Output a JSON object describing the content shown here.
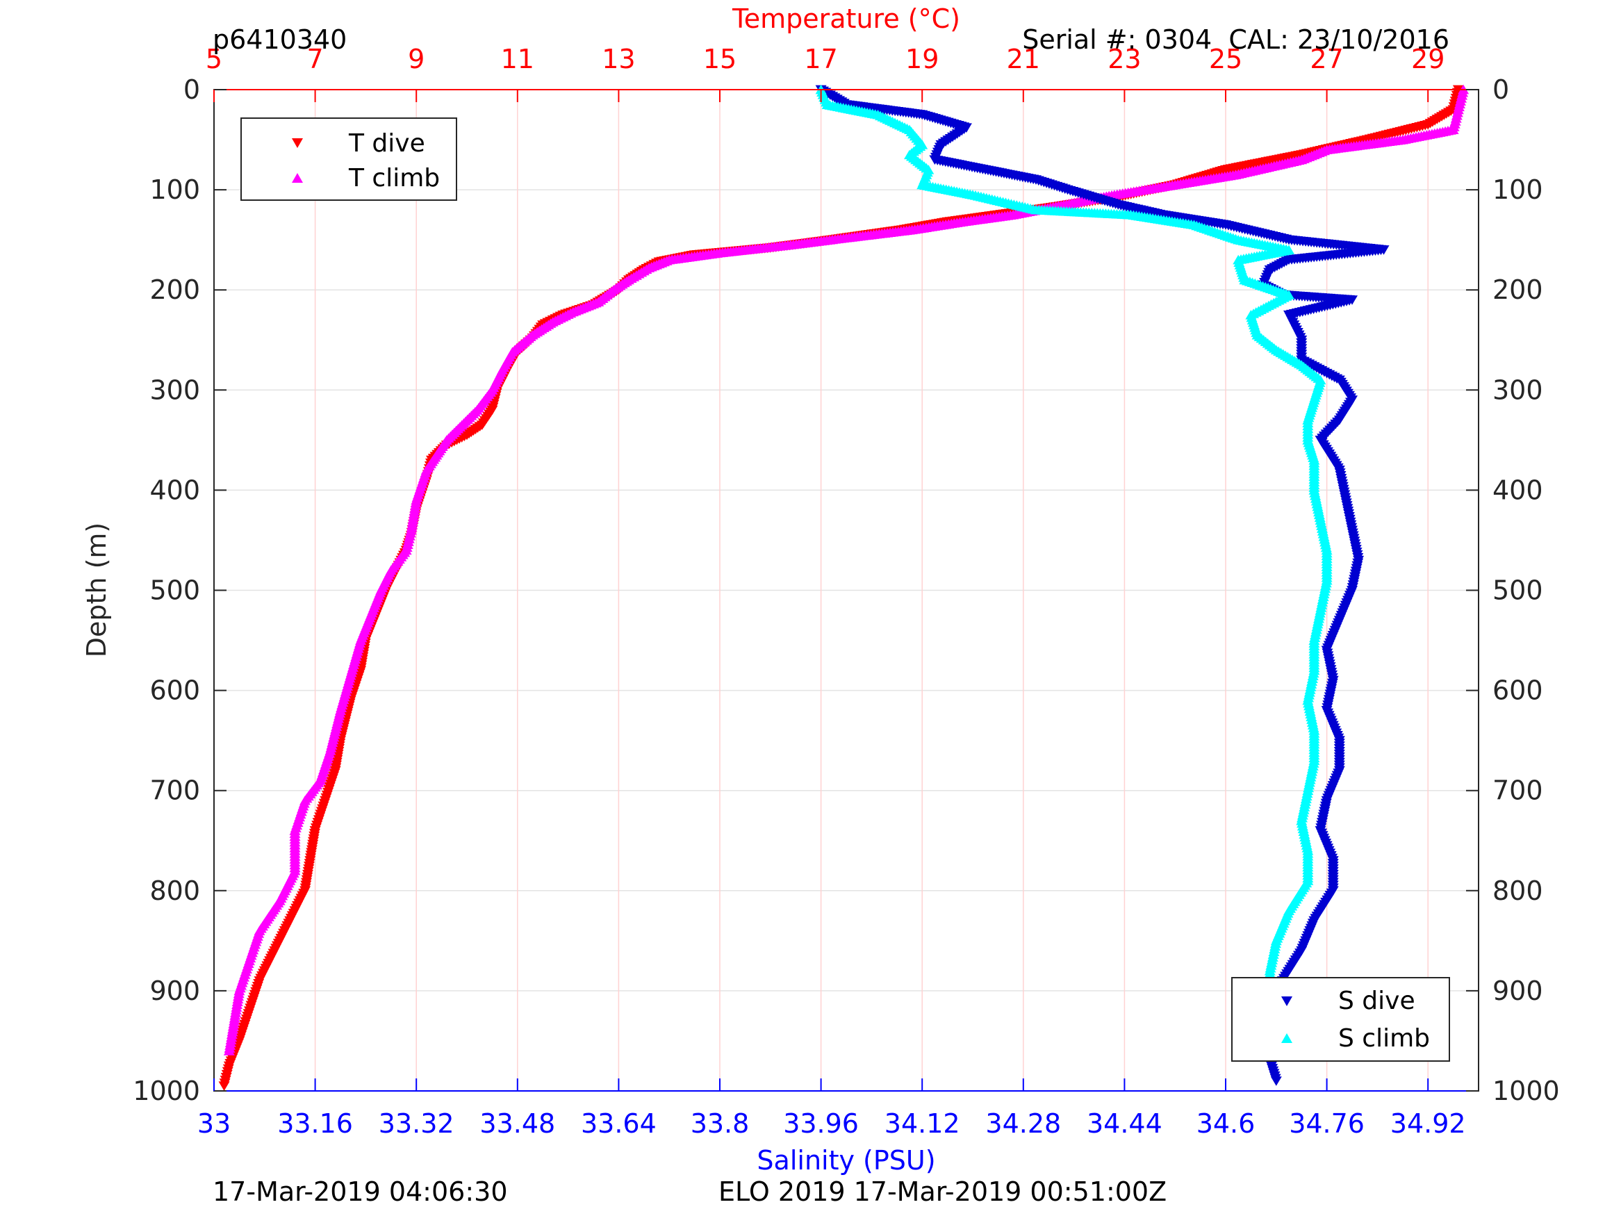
{
  "header": {
    "glider_id": "p6410340",
    "serial_cal": "Serial #: 0304  CAL: 23/10/2016"
  },
  "footer": {
    "left_timestamp": "17-Mar-2019 04:06:30",
    "mission": "ELO 2019 17-Mar-2019 00:51:00Z"
  },
  "colors": {
    "temp_axis": "#ff0000",
    "sal_axis": "#0000ff",
    "t_dive": "#ff0000",
    "t_climb": "#ff00ff",
    "s_dive": "#0000d0",
    "s_climb": "#00ffff"
  },
  "chart_data": {
    "type": "scatter",
    "title": "Temperature (°C)",
    "x_top": {
      "label": "Temperature (°C)",
      "range": [
        5,
        30
      ],
      "ticks": [
        "5",
        "7",
        "9",
        "11",
        "13",
        "15",
        "17",
        "19",
        "21",
        "23",
        "25",
        "27",
        "29"
      ]
    },
    "x_bottom": {
      "label": "Salinity (PSU)",
      "range": [
        33,
        35
      ],
      "ticks": [
        "33",
        "33.16",
        "33.32",
        "33.48",
        "33.64",
        "33.8",
        "33.96",
        "34.12",
        "34.28",
        "34.44",
        "34.6",
        "34.76",
        "34.92"
      ]
    },
    "y": {
      "label": "Depth (m)",
      "range": [
        0,
        1000
      ],
      "reversed": true,
      "ticks": [
        "0",
        "100",
        "200",
        "300",
        "400",
        "500",
        "600",
        "700",
        "800",
        "900",
        "1000"
      ]
    },
    "grid": true,
    "legend_temp": {
      "placement": "top-left",
      "entries": [
        "T dive",
        "T climb"
      ]
    },
    "legend_sal": {
      "placement": "bottom-right",
      "entries": [
        "S dive",
        "S climb"
      ]
    },
    "series": [
      {
        "name": "T dive",
        "axis": "temperature",
        "marker": "triangle-down",
        "points": [
          [
            29.6,
            0
          ],
          [
            29.5,
            20
          ],
          [
            29.0,
            35
          ],
          [
            27.8,
            50
          ],
          [
            26.5,
            65
          ],
          [
            25.0,
            80
          ],
          [
            24.0,
            95
          ],
          [
            22.8,
            108
          ],
          [
            21.5,
            118
          ],
          [
            20.5,
            125
          ],
          [
            19.5,
            132
          ],
          [
            18.6,
            140
          ],
          [
            17.2,
            150
          ],
          [
            16.0,
            158
          ],
          [
            14.5,
            165
          ],
          [
            13.8,
            172
          ],
          [
            13.5,
            180
          ],
          [
            13.2,
            190
          ],
          [
            13.0,
            200
          ],
          [
            12.5,
            215
          ],
          [
            11.9,
            225
          ],
          [
            11.5,
            235
          ],
          [
            11.3,
            248
          ],
          [
            11.0,
            262
          ],
          [
            10.8,
            280
          ],
          [
            10.6,
            300
          ],
          [
            10.5,
            320
          ],
          [
            10.3,
            335
          ],
          [
            10.0,
            345
          ],
          [
            9.6,
            355
          ],
          [
            9.3,
            370
          ],
          [
            9.2,
            390
          ],
          [
            9.0,
            420
          ],
          [
            8.9,
            445
          ],
          [
            8.8,
            460
          ],
          [
            8.6,
            480
          ],
          [
            8.4,
            500
          ],
          [
            8.2,
            525
          ],
          [
            8.0,
            550
          ],
          [
            7.9,
            580
          ],
          [
            7.7,
            610
          ],
          [
            7.5,
            650
          ],
          [
            7.4,
            680
          ],
          [
            7.2,
            710
          ],
          [
            7.0,
            740
          ],
          [
            6.9,
            770
          ],
          [
            6.8,
            800
          ],
          [
            6.5,
            830
          ],
          [
            6.2,
            860
          ],
          [
            5.9,
            890
          ],
          [
            5.7,
            920
          ],
          [
            5.5,
            950
          ],
          [
            5.3,
            975
          ],
          [
            5.2,
            995
          ]
        ]
      },
      {
        "name": "T climb",
        "axis": "temperature",
        "marker": "triangle-up",
        "points": [
          [
            29.7,
            0
          ],
          [
            29.6,
            20
          ],
          [
            29.5,
            40
          ],
          [
            28.5,
            50
          ],
          [
            27.0,
            60
          ],
          [
            26.5,
            70
          ],
          [
            25.2,
            85
          ],
          [
            24.0,
            95
          ],
          [
            22.8,
            105
          ],
          [
            21.8,
            115
          ],
          [
            20.8,
            125
          ],
          [
            19.8,
            132
          ],
          [
            18.8,
            140
          ],
          [
            17.5,
            148
          ],
          [
            16.4,
            155
          ],
          [
            15.0,
            163
          ],
          [
            14.0,
            170
          ],
          [
            13.6,
            178
          ],
          [
            13.2,
            190
          ],
          [
            12.9,
            200
          ],
          [
            12.6,
            212
          ],
          [
            12.1,
            222
          ],
          [
            11.7,
            232
          ],
          [
            11.3,
            245
          ],
          [
            10.9,
            262
          ],
          [
            10.7,
            280
          ],
          [
            10.5,
            300
          ],
          [
            10.2,
            320
          ],
          [
            9.9,
            335
          ],
          [
            9.6,
            350
          ],
          [
            9.4,
            365
          ],
          [
            9.2,
            380
          ],
          [
            9.0,
            410
          ],
          [
            8.9,
            440
          ],
          [
            8.8,
            460
          ],
          [
            8.5,
            480
          ],
          [
            8.3,
            500
          ],
          [
            8.1,
            525
          ],
          [
            7.9,
            550
          ],
          [
            7.7,
            585
          ],
          [
            7.5,
            620
          ],
          [
            7.3,
            660
          ],
          [
            7.1,
            690
          ],
          [
            6.8,
            710
          ],
          [
            6.6,
            740
          ],
          [
            6.6,
            780
          ],
          [
            6.3,
            810
          ],
          [
            5.9,
            840
          ],
          [
            5.7,
            870
          ],
          [
            5.5,
            900
          ],
          [
            5.4,
            930
          ],
          [
            5.3,
            960
          ]
        ]
      },
      {
        "name": "S dive",
        "axis": "salinity",
        "marker": "triangle-down",
        "points": [
          [
            33.96,
            0
          ],
          [
            34.0,
            15
          ],
          [
            34.12,
            25
          ],
          [
            34.19,
            38
          ],
          [
            34.15,
            55
          ],
          [
            34.14,
            70
          ],
          [
            34.22,
            80
          ],
          [
            34.3,
            90
          ],
          [
            34.35,
            100
          ],
          [
            34.43,
            115
          ],
          [
            34.5,
            125
          ],
          [
            34.6,
            135
          ],
          [
            34.7,
            150
          ],
          [
            34.85,
            160
          ],
          [
            34.7,
            170
          ],
          [
            34.67,
            180
          ],
          [
            34.66,
            195
          ],
          [
            34.69,
            205
          ],
          [
            34.8,
            210
          ],
          [
            34.7,
            225
          ],
          [
            34.72,
            250
          ],
          [
            34.72,
            270
          ],
          [
            34.78,
            290
          ],
          [
            34.8,
            310
          ],
          [
            34.78,
            330
          ],
          [
            34.75,
            350
          ],
          [
            34.78,
            380
          ],
          [
            34.79,
            410
          ],
          [
            34.8,
            440
          ],
          [
            34.81,
            470
          ],
          [
            34.8,
            500
          ],
          [
            34.78,
            530
          ],
          [
            34.76,
            560
          ],
          [
            34.77,
            590
          ],
          [
            34.76,
            620
          ],
          [
            34.78,
            650
          ],
          [
            34.78,
            680
          ],
          [
            34.76,
            710
          ],
          [
            34.75,
            740
          ],
          [
            34.77,
            770
          ],
          [
            34.77,
            800
          ],
          [
            34.74,
            830
          ],
          [
            34.72,
            860
          ],
          [
            34.69,
            890
          ],
          [
            34.68,
            920
          ],
          [
            34.68,
            950
          ],
          [
            34.67,
            970
          ],
          [
            34.68,
            990
          ]
        ]
      },
      {
        "name": "S climb",
        "axis": "salinity",
        "marker": "triangle-up",
        "points": [
          [
            33.96,
            0
          ],
          [
            33.97,
            15
          ],
          [
            34.05,
            25
          ],
          [
            34.1,
            40
          ],
          [
            34.12,
            55
          ],
          [
            34.1,
            65
          ],
          [
            34.13,
            80
          ],
          [
            34.12,
            95
          ],
          [
            34.2,
            105
          ],
          [
            34.3,
            120
          ],
          [
            34.45,
            125
          ],
          [
            34.55,
            135
          ],
          [
            34.62,
            150
          ],
          [
            34.7,
            160
          ],
          [
            34.62,
            170
          ],
          [
            34.63,
            190
          ],
          [
            34.7,
            205
          ],
          [
            34.64,
            225
          ],
          [
            34.65,
            245
          ],
          [
            34.68,
            260
          ],
          [
            34.72,
            275
          ],
          [
            34.75,
            290
          ],
          [
            34.74,
            310
          ],
          [
            34.73,
            330
          ],
          [
            34.73,
            350
          ],
          [
            34.74,
            370
          ],
          [
            34.74,
            400
          ],
          [
            34.75,
            430
          ],
          [
            34.76,
            460
          ],
          [
            34.76,
            490
          ],
          [
            34.75,
            520
          ],
          [
            34.74,
            550
          ],
          [
            34.74,
            580
          ],
          [
            34.73,
            610
          ],
          [
            34.74,
            640
          ],
          [
            34.74,
            670
          ],
          [
            34.73,
            700
          ],
          [
            34.72,
            730
          ],
          [
            34.73,
            760
          ],
          [
            34.73,
            790
          ],
          [
            34.7,
            820
          ],
          [
            34.68,
            850
          ],
          [
            34.67,
            880
          ],
          [
            34.67,
            910
          ],
          [
            34.67,
            940
          ],
          [
            34.68,
            955
          ]
        ]
      }
    ]
  }
}
